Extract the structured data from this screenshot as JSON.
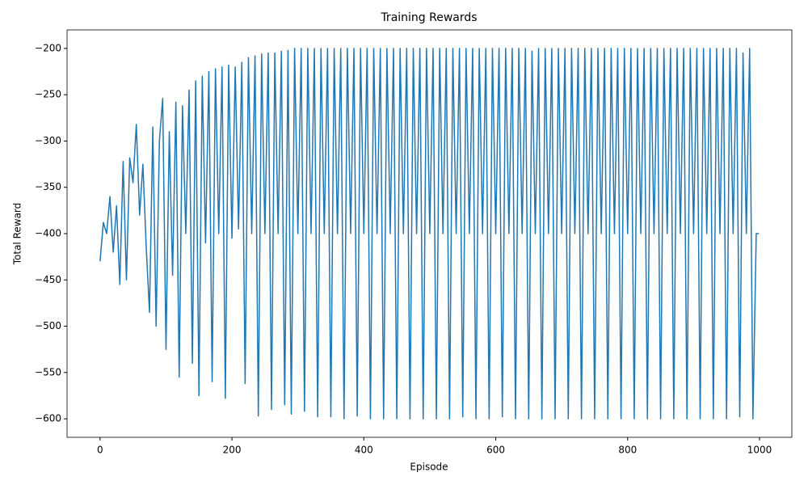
{
  "chart_data": {
    "type": "line",
    "title": "Training Rewards",
    "x_label": "Episode",
    "y_label": "Total Reward",
    "x": [
      0,
      5,
      10,
      15,
      20,
      25,
      30,
      35,
      40,
      45,
      50,
      55,
      60,
      65,
      70,
      75,
      80,
      85,
      90,
      95,
      100,
      105,
      110,
      115,
      120,
      125,
      130,
      135,
      140,
      145,
      150,
      155,
      160,
      165,
      170,
      175,
      180,
      185,
      190,
      195,
      200,
      205,
      210,
      215,
      220,
      225,
      230,
      235,
      240,
      245,
      250,
      255,
      260,
      265,
      270,
      275,
      280,
      285,
      290,
      295,
      300,
      305,
      310,
      315,
      320,
      325,
      330,
      335,
      340,
      345,
      350,
      355,
      360,
      365,
      370,
      375,
      380,
      385,
      390,
      395,
      400,
      405,
      410,
      415,
      420,
      425,
      430,
      435,
      440,
      445,
      450,
      455,
      460,
      465,
      470,
      475,
      480,
      485,
      490,
      495,
      500,
      505,
      510,
      515,
      520,
      525,
      530,
      535,
      540,
      545,
      550,
      555,
      560,
      565,
      570,
      575,
      580,
      585,
      590,
      595,
      600,
      605,
      610,
      615,
      620,
      625,
      630,
      635,
      640,
      645,
      650,
      655,
      660,
      665,
      670,
      675,
      680,
      685,
      690,
      695,
      700,
      705,
      710,
      715,
      720,
      725,
      730,
      735,
      740,
      745,
      750,
      755,
      760,
      765,
      770,
      775,
      780,
      785,
      790,
      795,
      800,
      805,
      810,
      815,
      820,
      825,
      830,
      835,
      840,
      845,
      850,
      855,
      860,
      865,
      870,
      875,
      880,
      885,
      890,
      895,
      900,
      905,
      910,
      915,
      920,
      925,
      930,
      935,
      940,
      945,
      950,
      955,
      960,
      965,
      970,
      975,
      980,
      985,
      990,
      995,
      999
    ],
    "series": [
      {
        "name": "Total Reward",
        "color": "#1f77b4",
        "values": [
          -430,
          -388,
          -400,
          -360,
          -420,
          -370,
          -455,
          -322,
          -450,
          -318,
          -345,
          -282,
          -380,
          -325,
          -414,
          -485,
          -285,
          -500,
          -300,
          -254,
          -525,
          -290,
          -445,
          -258,
          -555,
          -262,
          -400,
          -245,
          -540,
          -235,
          -575,
          -230,
          -410,
          -225,
          -560,
          -222,
          -400,
          -220,
          -578,
          -218,
          -405,
          -220,
          -395,
          -215,
          -562,
          -210,
          -400,
          -208,
          -597,
          -206,
          -400,
          -205,
          -590,
          -205,
          -400,
          -203,
          -585,
          -202,
          -595,
          -200,
          -400,
          -200,
          -592,
          -200,
          -400,
          -200,
          -598,
          -200,
          -400,
          -200,
          -598,
          -200,
          -400,
          -200,
          -600,
          -200,
          -400,
          -200,
          -597,
          -200,
          -400,
          -200,
          -600,
          -200,
          -400,
          -200,
          -600,
          -200,
          -400,
          -200,
          -600,
          -200,
          -400,
          -200,
          -600,
          -200,
          -400,
          -200,
          -600,
          -200,
          -400,
          -200,
          -600,
          -200,
          -400,
          -200,
          -600,
          -200,
          -400,
          -200,
          -598,
          -200,
          -400,
          -200,
          -600,
          -200,
          -400,
          -200,
          -600,
          -200,
          -400,
          -200,
          -598,
          -200,
          -400,
          -200,
          -600,
          -200,
          -400,
          -200,
          -600,
          -203,
          -400,
          -200,
          -600,
          -200,
          -400,
          -200,
          -600,
          -200,
          -400,
          -200,
          -600,
          -200,
          -400,
          -200,
          -600,
          -200,
          -400,
          -200,
          -600,
          -200,
          -400,
          -200,
          -600,
          -200,
          -400,
          -200,
          -600,
          -200,
          -400,
          -200,
          -600,
          -200,
          -400,
          -200,
          -600,
          -200,
          -400,
          -200,
          -600,
          -200,
          -400,
          -200,
          -600,
          -200,
          -400,
          -200,
          -600,
          -200,
          -400,
          -200,
          -600,
          -200,
          -400,
          -200,
          -600,
          -200,
          -400,
          -200,
          -600,
          -200,
          -400,
          -200,
          -598,
          -205,
          -400,
          -200,
          -600,
          -400,
          -400
        ]
      }
    ],
    "xlim": [
      -50,
      1049
    ],
    "ylim": [
      -620,
      -180
    ],
    "xticks": [
      0,
      200,
      400,
      600,
      800,
      1000
    ],
    "yticks": [
      {
        "value": -600,
        "label": "−600"
      },
      {
        "value": -550,
        "label": "−550"
      },
      {
        "value": -500,
        "label": "−500"
      },
      {
        "value": -450,
        "label": "−450"
      },
      {
        "value": -400,
        "label": "−400"
      },
      {
        "value": -350,
        "label": "−350"
      },
      {
        "value": -300,
        "label": "−300"
      },
      {
        "value": -250,
        "label": "−250"
      },
      {
        "value": -200,
        "label": "−200"
      }
    ]
  }
}
